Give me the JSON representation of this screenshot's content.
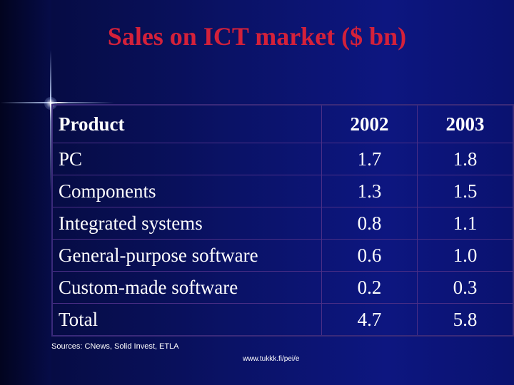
{
  "title": "Sales on ICT market ($ bn)",
  "table": {
    "headers": [
      "Product",
      "2002",
      "2003"
    ],
    "rows": [
      [
        "PC",
        "1.7",
        "1.8"
      ],
      [
        "Components",
        "1.3",
        "1.5"
      ],
      [
        "Integrated systems",
        "0.8",
        "1.1"
      ],
      [
        "General-purpose software",
        "0.6",
        "1.0"
      ],
      [
        "Custom-made software",
        "0.2",
        "0.3"
      ],
      [
        "Total",
        "4.7",
        "5.8"
      ]
    ]
  },
  "sources": "Sources: CNews, Solid Invest, ETLA",
  "footer_url": "www.tukkk.fi/pei/e",
  "colors": {
    "title": "#d4213a",
    "background": "#0a1266",
    "table_border": "#4a2e86",
    "text": "#ffffff"
  }
}
